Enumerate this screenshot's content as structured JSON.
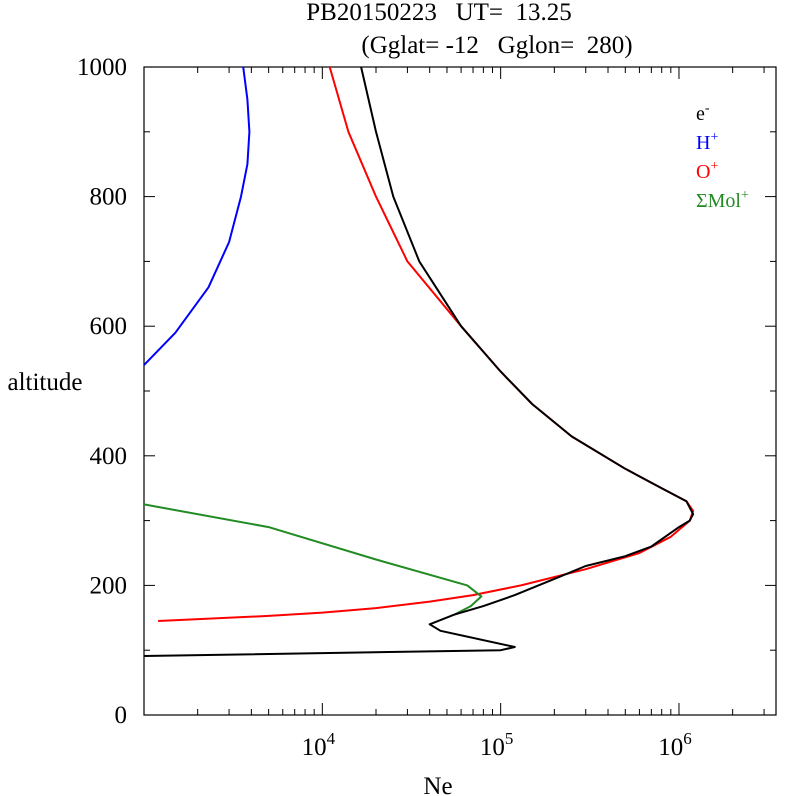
{
  "chart_data": {
    "type": "line",
    "title_line1": "PB20150223   UT=  13.25",
    "title_line2": "(Gglat= -12   Gglon=  280)",
    "xlabel": "Ne",
    "ylabel": "altitude",
    "x_scale": "log",
    "xlim": [
      1000,
      3500000
    ],
    "ylim": [
      0,
      1000
    ],
    "y_ticks": [
      0,
      200,
      400,
      600,
      800,
      1000
    ],
    "x_tick_labels": [
      {
        "base": "10",
        "exp": "4",
        "value": 10000
      },
      {
        "base": "10",
        "exp": "5",
        "value": 100000
      },
      {
        "base": "10",
        "exp": "6",
        "value": 1000000
      }
    ],
    "legend_position": "top-right",
    "series": [
      {
        "name": "e",
        "sup": "-",
        "color": "#000000",
        "points": [
          [
            1000,
            91
          ],
          [
            100000,
            100
          ],
          [
            120000,
            105
          ],
          [
            46000,
            130
          ],
          [
            40000,
            140
          ],
          [
            55000,
            155
          ],
          [
            80000,
            168
          ],
          [
            120000,
            185
          ],
          [
            200000,
            210
          ],
          [
            300000,
            230
          ],
          [
            500000,
            245
          ],
          [
            700000,
            260
          ],
          [
            1000000,
            290
          ],
          [
            1150000,
            300
          ],
          [
            1200000,
            310
          ],
          [
            1100000,
            330
          ],
          [
            800000,
            350
          ],
          [
            500000,
            380
          ],
          [
            250000,
            430
          ],
          [
            150000,
            480
          ],
          [
            100000,
            530
          ],
          [
            60000,
            600
          ],
          [
            35000,
            700
          ],
          [
            25000,
            800
          ],
          [
            20000,
            900
          ],
          [
            16500,
            1000
          ]
        ]
      },
      {
        "name": "H",
        "sup": "+",
        "color": "#0000ff",
        "points": [
          [
            1000,
            540
          ],
          [
            1500,
            590
          ],
          [
            2300,
            660
          ],
          [
            3000,
            730
          ],
          [
            3500,
            800
          ],
          [
            3800,
            850
          ],
          [
            3900,
            900
          ],
          [
            3800,
            950
          ],
          [
            3600,
            1000
          ]
        ]
      },
      {
        "name": "O",
        "sup": "+",
        "color": "#ff0000",
        "points": [
          [
            1200,
            145
          ],
          [
            5000,
            153
          ],
          [
            10000,
            158
          ],
          [
            20000,
            165
          ],
          [
            40000,
            175
          ],
          [
            70000,
            185
          ],
          [
            130000,
            200
          ],
          [
            300000,
            225
          ],
          [
            600000,
            250
          ],
          [
            900000,
            275
          ],
          [
            1150000,
            300
          ],
          [
            1200000,
            315
          ],
          [
            1100000,
            330
          ],
          [
            800000,
            350
          ],
          [
            500000,
            380
          ],
          [
            250000,
            430
          ],
          [
            150000,
            480
          ],
          [
            100000,
            530
          ],
          [
            60000,
            600
          ],
          [
            30000,
            700
          ],
          [
            20000,
            800
          ],
          [
            14000,
            900
          ],
          [
            11000,
            1000
          ]
        ]
      },
      {
        "name": "ΣMol",
        "sup": "+",
        "color": "#228b22",
        "points": [
          [
            1000,
            325
          ],
          [
            5000,
            290
          ],
          [
            20000,
            240
          ],
          [
            65000,
            200
          ],
          [
            78000,
            183
          ],
          [
            68000,
            168
          ],
          [
            55000,
            155
          ]
        ]
      }
    ]
  }
}
